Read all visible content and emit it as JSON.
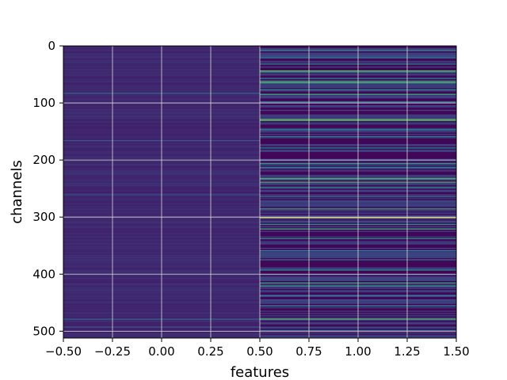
{
  "chart_data": {
    "type": "heatmap",
    "title": "",
    "xlabel": "features",
    "ylabel": "channels",
    "xlim": [
      -0.5,
      1.5
    ],
    "ylim": [
      512,
      0
    ],
    "y_inverted": true,
    "grid": true,
    "colormap": "viridis",
    "n_channels": 512,
    "columns": [
      {
        "feature": 0,
        "description": "near-uniform low values",
        "base_level": 0.12
      },
      {
        "feature": 1,
        "description": "higher variance with bright bands",
        "base_level": 0.05
      }
    ],
    "xticks": [
      "-0.50",
      "-0.25",
      "0.00",
      "0.25",
      "0.50",
      "0.75",
      "1.00",
      "1.25",
      "1.50"
    ],
    "xtick_values": [
      -0.5,
      -0.25,
      0.0,
      0.25,
      0.5,
      0.75,
      1.0,
      1.25,
      1.5
    ],
    "yticks": [
      "0",
      "100",
      "200",
      "300",
      "400",
      "500"
    ],
    "ytick_values": [
      0,
      100,
      200,
      300,
      400,
      500
    ],
    "col0_highlights": [
      {
        "channel": 82,
        "value": 0.35
      },
      {
        "channel": 165,
        "value": 0.25
      },
      {
        "channel": 260,
        "value": 0.22
      },
      {
        "channel": 478,
        "value": 0.32
      },
      {
        "channel": 492,
        "value": 0.28
      }
    ],
    "col1_highlights": [
      {
        "channel": 7,
        "value": 0.45
      },
      {
        "channel": 20,
        "value": 0.4
      },
      {
        "channel": 31,
        "value": 0.45
      },
      {
        "channel": 43,
        "value": 0.72
      },
      {
        "channel": 45,
        "value": 0.55
      },
      {
        "channel": 56,
        "value": 0.42
      },
      {
        "channel": 62,
        "value": 0.68
      },
      {
        "channel": 64,
        "value": 0.6
      },
      {
        "channel": 76,
        "value": 0.48
      },
      {
        "channel": 84,
        "value": 0.62
      },
      {
        "channel": 97,
        "value": 0.4
      },
      {
        "channel": 128,
        "value": 0.75
      },
      {
        "channel": 130,
        "value": 0.65
      },
      {
        "channel": 146,
        "value": 0.5
      },
      {
        "channel": 158,
        "value": 0.42
      },
      {
        "channel": 178,
        "value": 0.45
      },
      {
        "channel": 205,
        "value": 0.55
      },
      {
        "channel": 212,
        "value": 0.45
      },
      {
        "channel": 232,
        "value": 0.72
      },
      {
        "channel": 238,
        "value": 0.68
      },
      {
        "channel": 248,
        "value": 0.5
      },
      {
        "channel": 263,
        "value": 0.45
      },
      {
        "channel": 285,
        "value": 0.58
      },
      {
        "channel": 300,
        "value": 0.95
      },
      {
        "channel": 312,
        "value": 0.5
      },
      {
        "channel": 320,
        "value": 0.62
      },
      {
        "channel": 337,
        "value": 0.48
      },
      {
        "channel": 358,
        "value": 0.45
      },
      {
        "channel": 374,
        "value": 0.42
      },
      {
        "channel": 392,
        "value": 0.5
      },
      {
        "channel": 415,
        "value": 0.6
      },
      {
        "channel": 420,
        "value": 0.55
      },
      {
        "channel": 437,
        "value": 0.42
      },
      {
        "channel": 455,
        "value": 0.45
      },
      {
        "channel": 478,
        "value": 0.7
      },
      {
        "channel": 498,
        "value": 0.42
      }
    ]
  }
}
